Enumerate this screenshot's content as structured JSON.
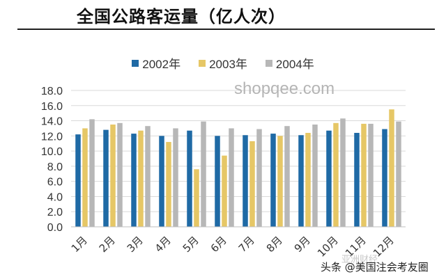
{
  "chart_data": {
    "type": "bar",
    "title": "全国公路客运量（亿人次）",
    "categories": [
      "1月",
      "2月",
      "3月",
      "4月",
      "5月",
      "6月",
      "7月",
      "8月",
      "9月",
      "10月",
      "11月",
      "12月"
    ],
    "series": [
      {
        "name": "2002年",
        "color": "#1f6aa5",
        "values": [
          12.2,
          12.8,
          12.3,
          12.0,
          12.7,
          12.0,
          12.1,
          12.3,
          12.1,
          12.7,
          12.4,
          12.9
        ]
      },
      {
        "name": "2003年",
        "color": "#e6c766",
        "values": [
          13.0,
          13.5,
          12.7,
          11.2,
          7.6,
          9.4,
          11.3,
          12.0,
          12.4,
          13.7,
          13.6,
          15.5
        ]
      },
      {
        "name": "2004年",
        "color": "#b7b7b7",
        "values": [
          14.2,
          13.7,
          13.3,
          13.0,
          13.9,
          13.0,
          12.9,
          13.3,
          13.5,
          14.3,
          13.6,
          13.9
        ]
      }
    ],
    "ylim": [
      0,
      18
    ],
    "yticks": [
      "0.0",
      "2.0",
      "4.0",
      "6.0",
      "8.0",
      "10.0",
      "12.0",
      "14.0",
      "16.0",
      "18.0"
    ],
    "grid": true,
    "legend_position": "top"
  },
  "watermark": "shopqee.com",
  "footer_text": "亚洲财经",
  "credit": "头条 @美国注会考友圈"
}
